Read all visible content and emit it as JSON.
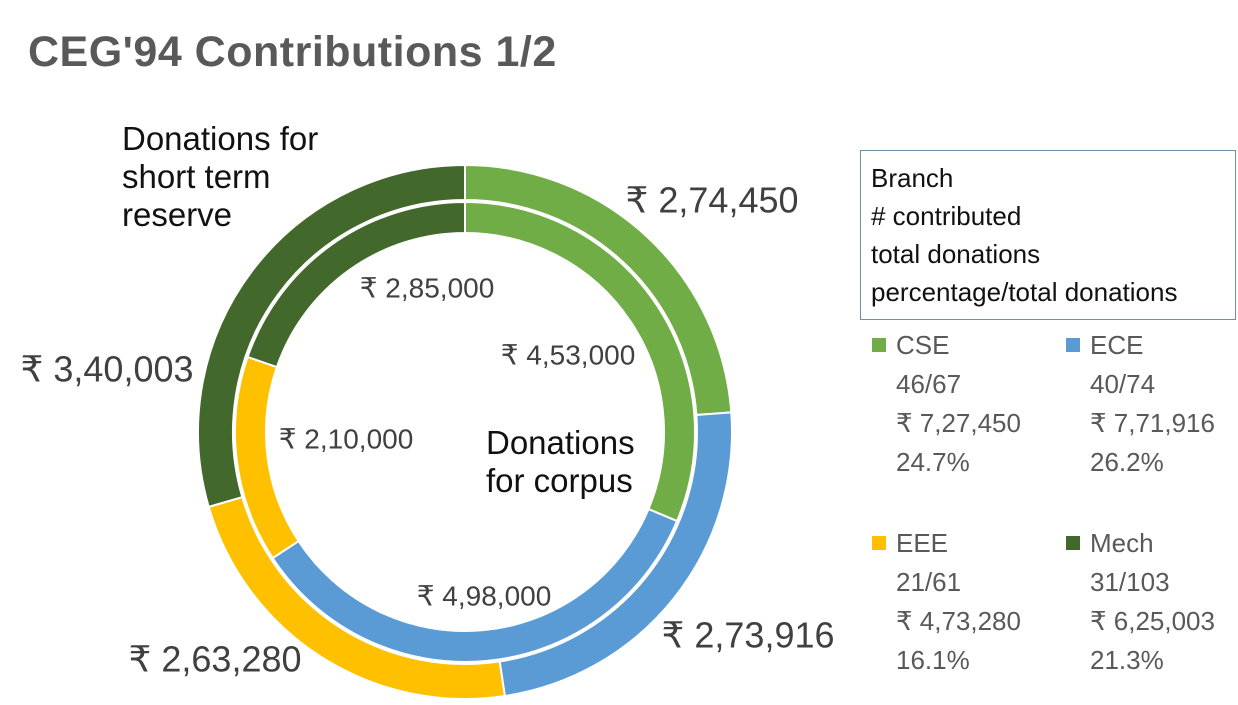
{
  "title": "CEG'94 Contributions 1/2",
  "chart_data": {
    "type": "doughnut",
    "title": "CEG'94 Contributions 1/2",
    "categories": [
      "CSE",
      "ECE",
      "EEE",
      "Mech"
    ],
    "colors": {
      "CSE": "#70ad47",
      "ECE": "#5b9bd5",
      "EEE": "#ffc000",
      "Mech": "#43682b"
    },
    "series": [
      {
        "ring": "outer",
        "values": [
          274450,
          273916,
          263280,
          340003
        ],
        "labels": [
          "₹ 2,74,450",
          "₹ 2,73,916",
          "₹ 2,63,280",
          "₹ 3,40,003"
        ]
      },
      {
        "ring": "inner",
        "values": [
          453000,
          498000,
          210000,
          285000
        ],
        "labels": [
          "₹ 4,53,000",
          "₹ 4,98,000",
          "₹ 2,10,000",
          "₹ 2,85,000"
        ]
      }
    ]
  },
  "captions": {
    "short_term": "Donations for short term reserve",
    "corpus": "Donations for corpus"
  },
  "legend": {
    "header": [
      "Branch",
      "# contributed",
      "total donations",
      "percentage/total donations"
    ],
    "items": [
      {
        "name": "CSE",
        "contributed": "46/67",
        "total": "₹ 7,27,450",
        "percent": "24.7%",
        "color": "#70ad47"
      },
      {
        "name": "ECE",
        "contributed": "40/74",
        "total": "₹ 7,71,916",
        "percent": "26.2%",
        "color": "#5b9bd5"
      },
      {
        "name": "EEE",
        "contributed": "21/61",
        "total": "₹ 4,73,280",
        "percent": "16.1%",
        "color": "#ffc000"
      },
      {
        "name": "Mech",
        "contributed": "31/103",
        "total": "₹ 6,25,003",
        "percent": "21.3%",
        "color": "#43682b"
      }
    ]
  }
}
